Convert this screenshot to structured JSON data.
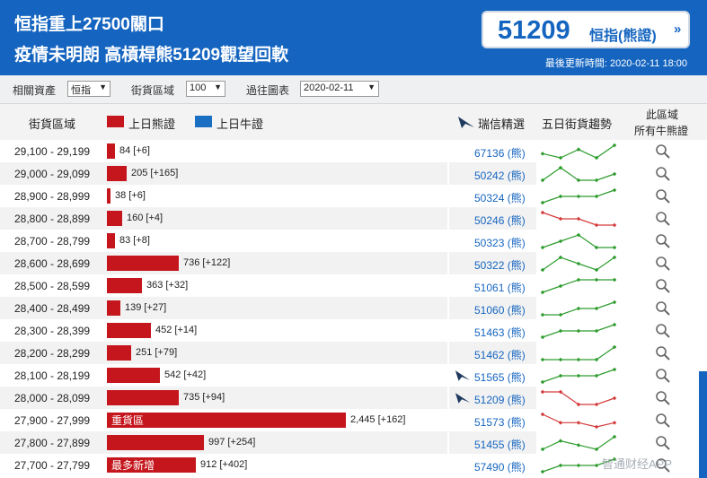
{
  "header": {
    "headline_1": "恒指重上27500關口",
    "headline_2": "疫情未明朗 高槓桿熊51209觀望回軟",
    "code": "51209",
    "code_type": "恒指(熊證)",
    "code_arrow": "»",
    "last_updated": "最後更新時間: 2020-02-11 18:00"
  },
  "filters": {
    "asset_label": "相關資產",
    "asset_value": "恒指",
    "range_label": "街貨區域",
    "range_value": "100",
    "history_label": "過往圖表",
    "history_value": "2020-02-11"
  },
  "columns": {
    "range": "街貨區域",
    "bear_legend": "上日熊證",
    "bull_legend": "上日牛證",
    "picks": "瑞信精選",
    "trend": "五日街貨趨勢",
    "all_line1": "此區域",
    "all_line2": "所有牛熊證"
  },
  "colors": {
    "header_bg": "#1565c0",
    "bear": "#c4161c",
    "bull": "#1b6fc3",
    "trend_up": "#2e9c2e",
    "trend_down": "#d33a3a"
  },
  "rows": [
    {
      "range": "29,100 - 29,199",
      "qty": "84 [+6]",
      "value": 84,
      "tag": "",
      "code": "67136 (熊)",
      "featured": false,
      "trend_dir": "up",
      "trend": [
        2,
        1,
        3,
        1,
        4
      ]
    },
    {
      "range": "29,000 - 29,099",
      "qty": "205 [+165]",
      "value": 205,
      "tag": "",
      "code": "50242 (熊)",
      "featured": false,
      "trend_dir": "up",
      "trend": [
        1,
        3,
        1,
        1,
        2
      ]
    },
    {
      "range": "28,900 - 28,999",
      "qty": "38 [+6]",
      "value": 38,
      "tag": "",
      "code": "50324 (熊)",
      "featured": false,
      "trend_dir": "up",
      "trend": [
        1,
        2,
        2,
        2,
        3
      ]
    },
    {
      "range": "28,800 - 28,899",
      "qty": "160 [+4]",
      "value": 160,
      "tag": "",
      "code": "50246 (熊)",
      "featured": false,
      "trend_dir": "down",
      "trend": [
        4,
        3,
        3,
        2,
        2
      ]
    },
    {
      "range": "28,700 - 28,799",
      "qty": "83 [+8]",
      "value": 83,
      "tag": "",
      "code": "50323 (熊)",
      "featured": false,
      "trend_dir": "up",
      "trend": [
        1,
        2,
        3,
        1,
        1
      ]
    },
    {
      "range": "28,600 - 28,699",
      "qty": "736 [+122]",
      "value": 736,
      "tag": "",
      "code": "50322 (熊)",
      "featured": false,
      "trend_dir": "up",
      "trend": [
        1,
        3,
        2,
        1,
        3
      ]
    },
    {
      "range": "28,500 - 28,599",
      "qty": "363 [+32]",
      "value": 363,
      "tag": "",
      "code": "51061 (熊)",
      "featured": false,
      "trend_dir": "up",
      "trend": [
        1,
        2,
        3,
        3,
        3
      ]
    },
    {
      "range": "28,400 - 28,499",
      "qty": "139 [+27]",
      "value": 139,
      "tag": "",
      "code": "51060 (熊)",
      "featured": false,
      "trend_dir": "up",
      "trend": [
        1,
        1,
        2,
        2,
        3
      ]
    },
    {
      "range": "28,300 - 28,399",
      "qty": "452 [+14]",
      "value": 452,
      "tag": "",
      "code": "51463 (熊)",
      "featured": false,
      "trend_dir": "up",
      "trend": [
        1,
        2,
        2,
        2,
        3
      ]
    },
    {
      "range": "28,200 - 28,299",
      "qty": "251 [+79]",
      "value": 251,
      "tag": "",
      "code": "51462 (熊)",
      "featured": false,
      "trend_dir": "up",
      "trend": [
        1,
        1,
        1,
        1,
        3
      ]
    },
    {
      "range": "28,100 - 28,199",
      "qty": "542 [+42]",
      "value": 542,
      "tag": "",
      "code": "51565 (熊)",
      "featured": true,
      "trend_dir": "up",
      "trend": [
        1,
        2,
        2,
        2,
        3
      ]
    },
    {
      "range": "28,000 - 28,099",
      "qty": "735 [+94]",
      "value": 735,
      "tag": "",
      "code": "51209 (熊)",
      "featured": true,
      "trend_dir": "down",
      "trend": [
        4,
        4,
        2,
        2,
        3
      ]
    },
    {
      "range": "27,900 - 27,999",
      "qty": "2,445 [+162]",
      "value": 2445,
      "tag": "重貨區",
      "code": "51573 (熊)",
      "featured": false,
      "trend_dir": "down",
      "trend": [
        4,
        2,
        2,
        1,
        2
      ]
    },
    {
      "range": "27,800 - 27,899",
      "qty": "997 [+254]",
      "value": 997,
      "tag": "",
      "code": "51455 (熊)",
      "featured": false,
      "trend_dir": "up",
      "trend": [
        1,
        3,
        2,
        1,
        4
      ]
    },
    {
      "range": "27,700 - 27,799",
      "qty": "912 [+402]",
      "value": 912,
      "tag": "最多新增",
      "code": "57490 (熊)",
      "featured": false,
      "trend_dir": "up",
      "trend": [
        1,
        2,
        2,
        2,
        3
      ]
    }
  ],
  "watermark": "智通财经APP"
}
